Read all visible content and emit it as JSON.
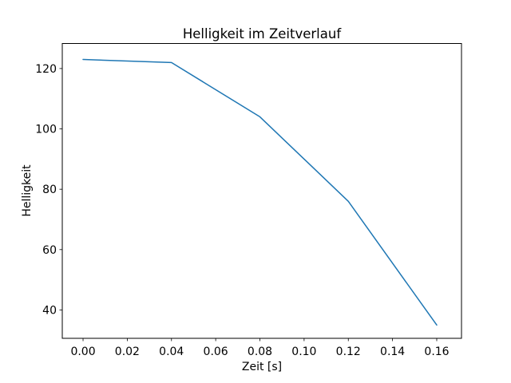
{
  "figure": {
    "background": "#ffffff"
  },
  "chart_data": {
    "type": "line",
    "title": "Helligkeit im Zeitverlauf",
    "xlabel": "Zeit [s]",
    "ylabel": "Helligkeit",
    "x": [
      0.0,
      0.04,
      0.08,
      0.12,
      0.16
    ],
    "y": [
      123,
      122,
      104,
      76,
      35
    ],
    "x_ticks": [
      0.0,
      0.02,
      0.04,
      0.06,
      0.08,
      0.1,
      0.12,
      0.14,
      0.16
    ],
    "x_tick_labels": [
      "0.00",
      "0.02",
      "0.04",
      "0.06",
      "0.08",
      "0.10",
      "0.12",
      "0.14",
      "0.16"
    ],
    "y_ticks": [
      40,
      60,
      80,
      100,
      120
    ],
    "y_tick_labels": [
      "40",
      "60",
      "80",
      "100",
      "120"
    ],
    "xlim": [
      -0.0094,
      0.1712
    ],
    "ylim": [
      30.6,
      128.3
    ],
    "grid": false,
    "legend": null,
    "line_color": "#1f77b4",
    "axis_color": "#000000"
  }
}
